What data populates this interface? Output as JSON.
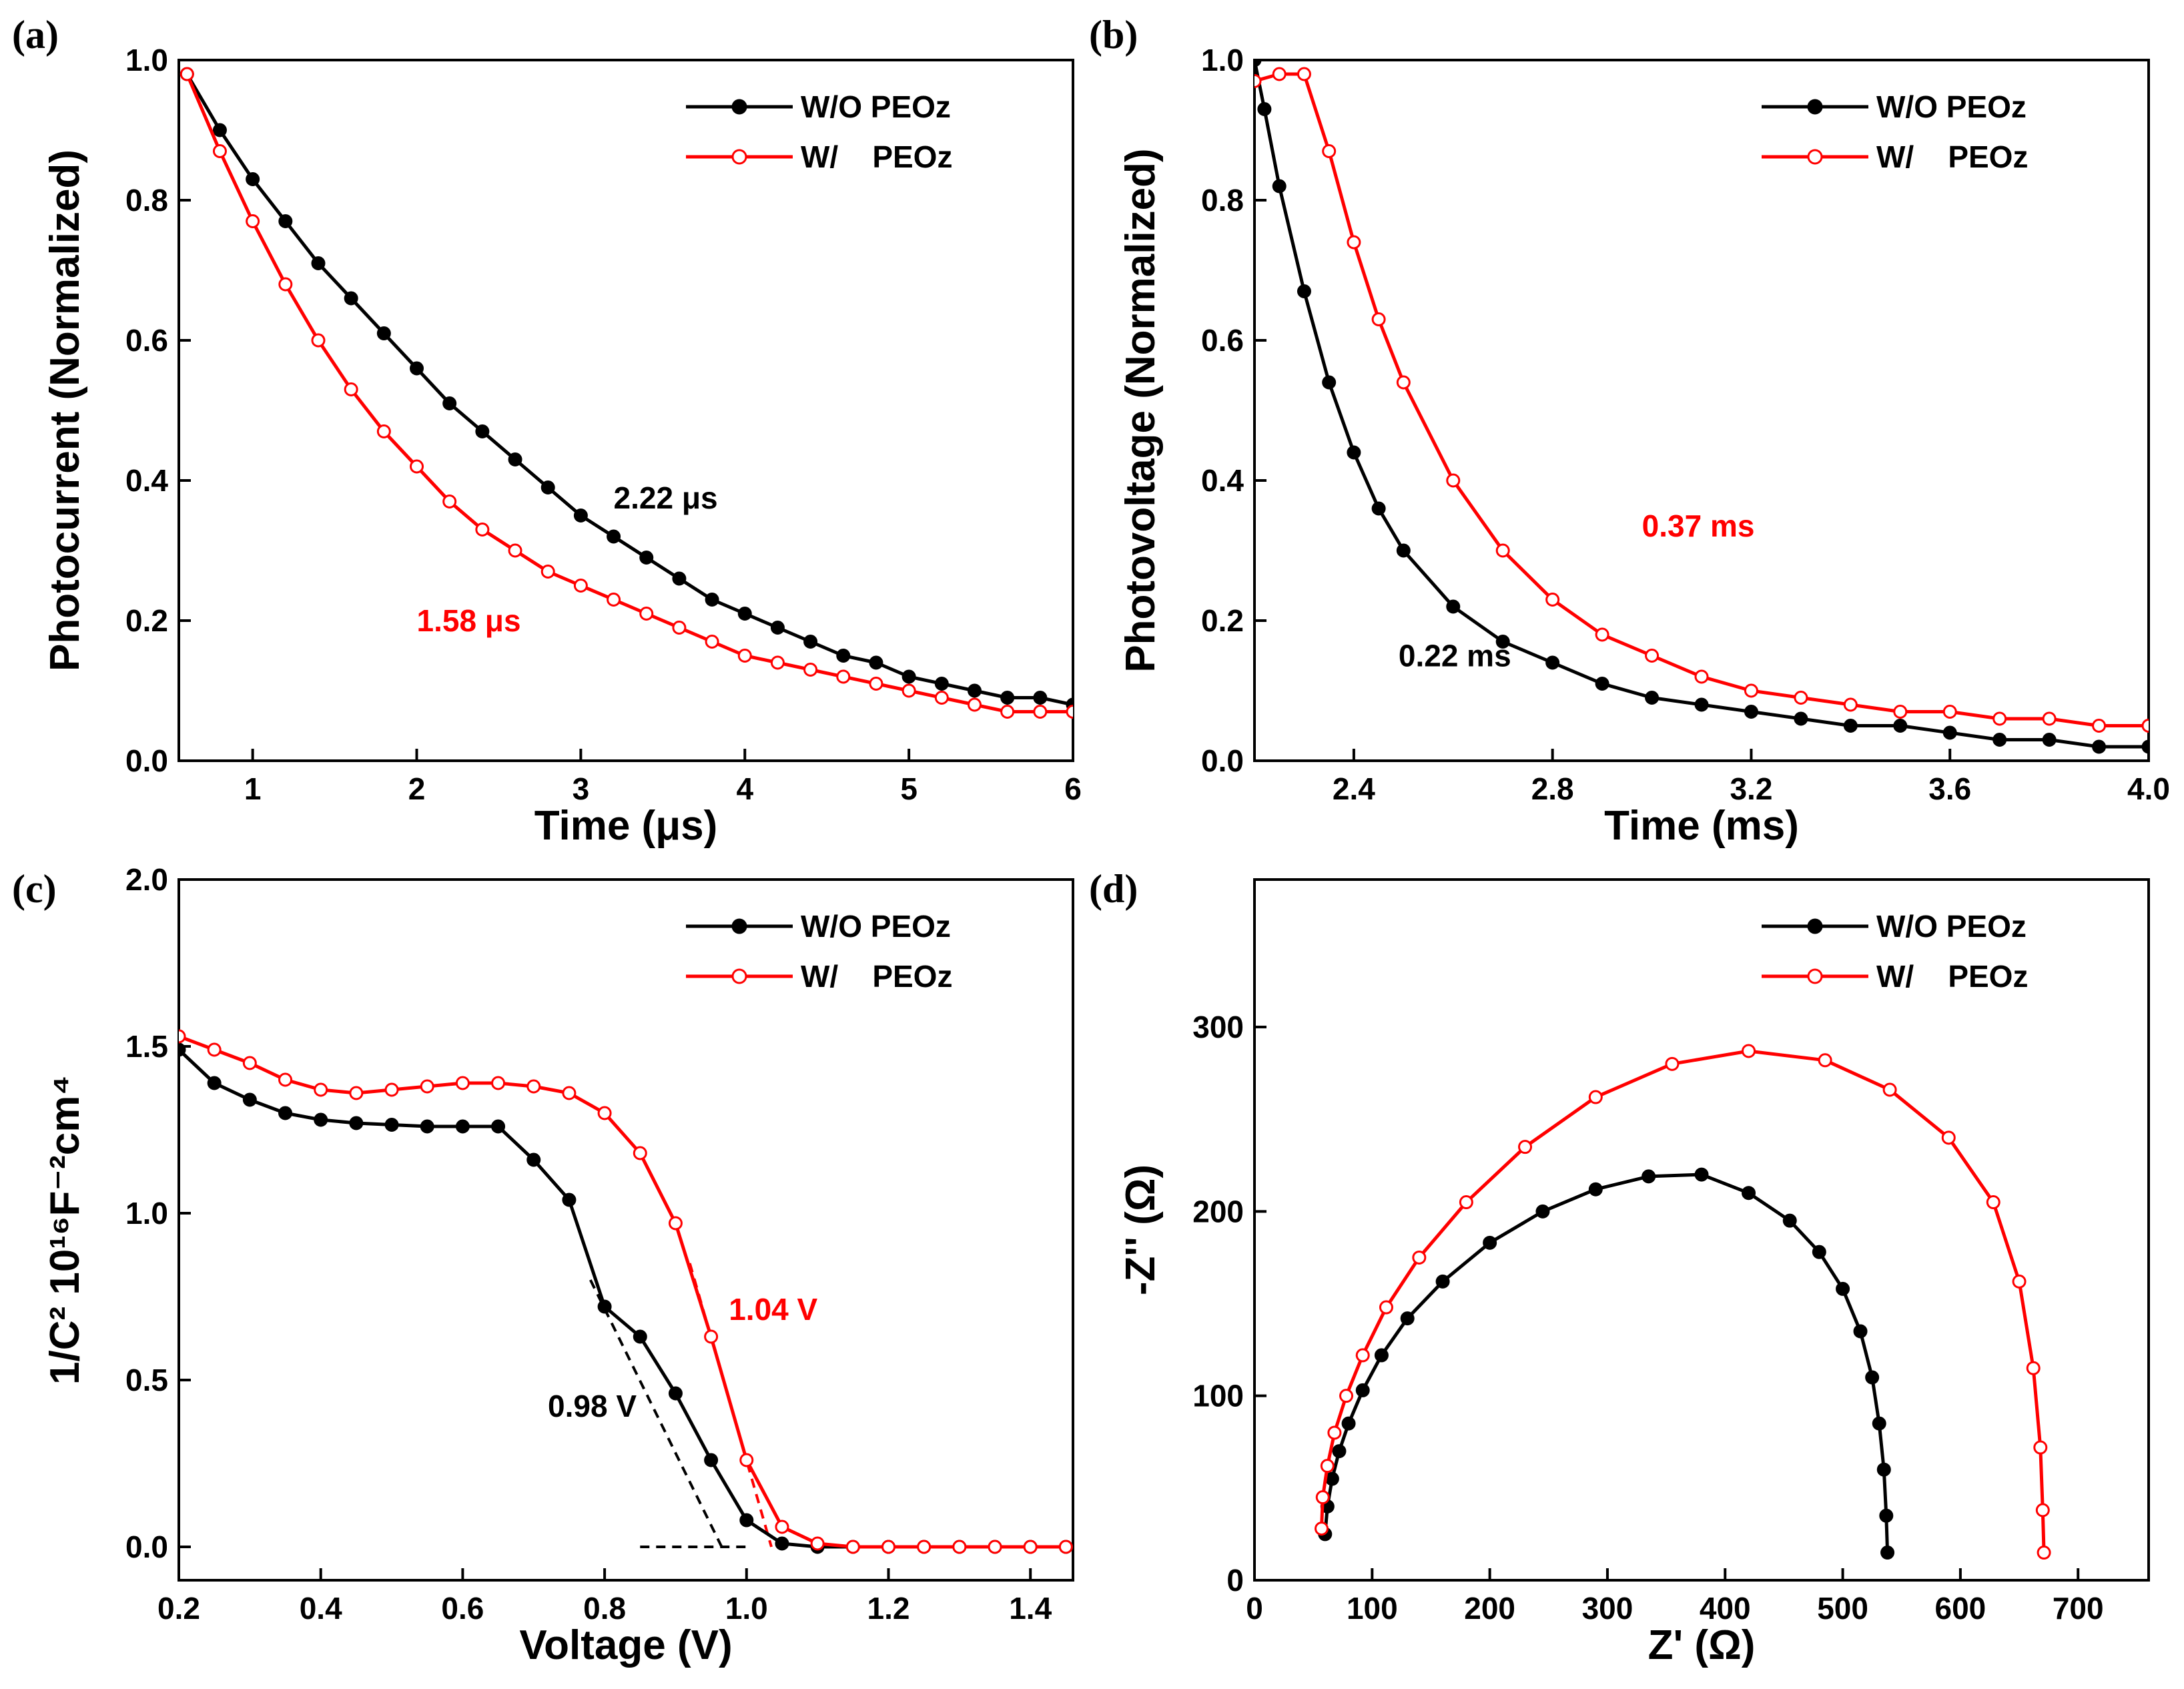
{
  "chart_data": [
    {
      "panel": "(a)",
      "type": "scatter",
      "xlabel": "Time (μs)",
      "ylabel": "Photocurrent (Normalized)",
      "xlim": [
        0.55,
        6.0
      ],
      "ylim": [
        0.0,
        1.0
      ],
      "xticks": [
        1,
        2,
        3,
        4,
        5,
        6
      ],
      "xtick_labels": [
        "1",
        "2",
        "3",
        "4",
        "5",
        "6"
      ],
      "yticks": [
        0.0,
        0.2,
        0.4,
        0.6,
        0.8,
        1.0
      ],
      "ytick_labels": [
        "0.0",
        "0.2",
        "0.4",
        "0.6",
        "0.8",
        "1.0"
      ],
      "legend_position": "top-right",
      "series": [
        {
          "name": "W/O PEOz",
          "color": "#000000",
          "marker": "filled-circle",
          "x": [
            0.6,
            0.8,
            1.0,
            1.2,
            1.4,
            1.6,
            1.8,
            2.0,
            2.2,
            2.4,
            2.6,
            2.8,
            3.0,
            3.2,
            3.4,
            3.6,
            3.8,
            4.0,
            4.2,
            4.4,
            4.6,
            4.8,
            5.0,
            5.2,
            5.4,
            5.6,
            5.8,
            6.0
          ],
          "y": [
            0.98,
            0.9,
            0.83,
            0.77,
            0.71,
            0.66,
            0.61,
            0.56,
            0.51,
            0.47,
            0.43,
            0.39,
            0.35,
            0.32,
            0.29,
            0.26,
            0.23,
            0.21,
            0.19,
            0.17,
            0.15,
            0.14,
            0.12,
            0.11,
            0.1,
            0.09,
            0.09,
            0.08
          ]
        },
        {
          "name": "W/    PEOz",
          "color": "#ff0000",
          "marker": "open-circle",
          "x": [
            0.6,
            0.8,
            1.0,
            1.2,
            1.4,
            1.6,
            1.8,
            2.0,
            2.2,
            2.4,
            2.6,
            2.8,
            3.0,
            3.2,
            3.4,
            3.6,
            3.8,
            4.0,
            4.2,
            4.4,
            4.6,
            4.8,
            5.0,
            5.2,
            5.4,
            5.6,
            5.8,
            6.0
          ],
          "y": [
            0.98,
            0.87,
            0.77,
            0.68,
            0.6,
            0.53,
            0.47,
            0.42,
            0.37,
            0.33,
            0.3,
            0.27,
            0.25,
            0.23,
            0.21,
            0.19,
            0.17,
            0.15,
            0.14,
            0.13,
            0.12,
            0.11,
            0.1,
            0.09,
            0.08,
            0.07,
            0.07,
            0.07
          ]
        }
      ],
      "annotations": [
        {
          "text": "2.22 μs",
          "x": 3.2,
          "y": 0.36,
          "color": "#000000"
        },
        {
          "text": "1.58 μs",
          "x": 2.0,
          "y": 0.185,
          "color": "#ff0000"
        }
      ]
    },
    {
      "panel": "(b)",
      "type": "scatter",
      "xlabel": "Time (ms)",
      "ylabel": "Photovoltage (Normalized)",
      "xlim": [
        2.2,
        4.0
      ],
      "ylim": [
        0.0,
        1.0
      ],
      "xticks": [
        2.4,
        2.8,
        3.2,
        3.6,
        4.0
      ],
      "xtick_labels": [
        "2.4",
        "2.8",
        "3.2",
        "3.6",
        "4.0"
      ],
      "yticks": [
        0.0,
        0.2,
        0.4,
        0.6,
        0.8,
        1.0
      ],
      "ytick_labels": [
        "0.0",
        "0.2",
        "0.4",
        "0.6",
        "0.8",
        "1.0"
      ],
      "legend_position": "top-right",
      "series": [
        {
          "name": "W/O PEOz",
          "color": "#000000",
          "marker": "filled-circle",
          "x": [
            2.2,
            2.22,
            2.25,
            2.3,
            2.35,
            2.4,
            2.45,
            2.5,
            2.6,
            2.7,
            2.8,
            2.9,
            3.0,
            3.1,
            3.2,
            3.3,
            3.4,
            3.5,
            3.6,
            3.7,
            3.8,
            3.9,
            4.0
          ],
          "y": [
            1.0,
            0.93,
            0.82,
            0.67,
            0.54,
            0.44,
            0.36,
            0.3,
            0.22,
            0.17,
            0.14,
            0.11,
            0.09,
            0.08,
            0.07,
            0.06,
            0.05,
            0.05,
            0.04,
            0.03,
            0.03,
            0.02,
            0.02
          ]
        },
        {
          "name": "W/    PEOz",
          "color": "#ff0000",
          "marker": "open-circle",
          "x": [
            2.2,
            2.25,
            2.3,
            2.35,
            2.4,
            2.45,
            2.5,
            2.6,
            2.7,
            2.8,
            2.9,
            3.0,
            3.1,
            3.2,
            3.3,
            3.4,
            3.5,
            3.6,
            3.7,
            3.8,
            3.9,
            4.0
          ],
          "y": [
            0.97,
            0.98,
            0.98,
            0.87,
            0.74,
            0.63,
            0.54,
            0.4,
            0.3,
            0.23,
            0.18,
            0.15,
            0.12,
            0.1,
            0.09,
            0.08,
            0.07,
            0.07,
            0.06,
            0.06,
            0.05,
            0.05
          ]
        }
      ],
      "annotations": [
        {
          "text": "0.37 ms",
          "x": 2.98,
          "y": 0.32,
          "color": "#ff0000"
        },
        {
          "text": "0.22 ms",
          "x": 2.49,
          "y": 0.135,
          "color": "#000000"
        }
      ]
    },
    {
      "panel": "(c)",
      "type": "line",
      "xlabel": "Voltage (V)",
      "ylabel": "1/C² 10¹⁶F⁻²cm⁴",
      "xlim": [
        0.2,
        1.46
      ],
      "ylim": [
        -0.1,
        2.0
      ],
      "xticks": [
        0.2,
        0.4,
        0.6,
        0.8,
        1.0,
        1.2,
        1.4
      ],
      "xtick_labels": [
        "0.2",
        "0.4",
        "0.6",
        "0.8",
        "1.0",
        "1.2",
        "1.4"
      ],
      "yticks": [
        0.0,
        0.5,
        1.0,
        1.5,
        2.0
      ],
      "ytick_labels": [
        "0.0",
        "0.5",
        "1.0",
        "1.5",
        "2.0"
      ],
      "legend_position": "top-right",
      "series": [
        {
          "name": "W/O PEOz",
          "color": "#000000",
          "marker": "filled-circle",
          "x": [
            0.2,
            0.25,
            0.3,
            0.35,
            0.4,
            0.45,
            0.5,
            0.55,
            0.6,
            0.65,
            0.7,
            0.75,
            0.8,
            0.85,
            0.9,
            0.95,
            1.0,
            1.05,
            1.1,
            1.15,
            1.2,
            1.25,
            1.3,
            1.35,
            1.4,
            1.45
          ],
          "y": [
            1.49,
            1.39,
            1.34,
            1.3,
            1.28,
            1.27,
            1.265,
            1.26,
            1.26,
            1.26,
            1.16,
            1.04,
            0.72,
            0.63,
            0.46,
            0.26,
            0.08,
            0.01,
            0.0,
            0.0,
            0.0,
            0.0,
            0.0,
            0.0,
            0.0,
            0.0
          ]
        },
        {
          "name": "W/    PEOz",
          "color": "#ff0000",
          "marker": "open-circle",
          "x": [
            0.2,
            0.25,
            0.3,
            0.35,
            0.4,
            0.45,
            0.5,
            0.55,
            0.6,
            0.65,
            0.7,
            0.75,
            0.8,
            0.85,
            0.9,
            0.95,
            1.0,
            1.05,
            1.1,
            1.15,
            1.2,
            1.25,
            1.3,
            1.35,
            1.4,
            1.45
          ],
          "y": [
            1.53,
            1.49,
            1.45,
            1.4,
            1.37,
            1.36,
            1.37,
            1.38,
            1.39,
            1.39,
            1.38,
            1.36,
            1.3,
            1.18,
            0.97,
            0.63,
            0.26,
            0.06,
            0.01,
            0.0,
            0.0,
            0.0,
            0.0,
            0.0,
            0.0,
            0.0
          ]
        }
      ],
      "annotations": [
        {
          "text": "1.04 V",
          "x": 0.975,
          "y": 0.68,
          "color": "#ff0000"
        },
        {
          "text": "0.98 V",
          "x": 0.72,
          "y": 0.39,
          "color": "#000000"
        }
      ]
    },
    {
      "panel": "(d)",
      "type": "line",
      "xlabel": "Z' (Ω)",
      "ylabel": "-Z'' (Ω)",
      "xlim": [
        0,
        760
      ],
      "ylim": [
        0,
        380
      ],
      "xticks": [
        0,
        100,
        200,
        300,
        400,
        500,
        600,
        700
      ],
      "xtick_labels": [
        "0",
        "100",
        "200",
        "300",
        "400",
        "500",
        "600",
        "700"
      ],
      "yticks": [
        0,
        100,
        200,
        300
      ],
      "ytick_labels": [
        "0",
        "100",
        "200",
        "300"
      ],
      "legend_position": "top-right",
      "series": [
        {
          "name": "W/O PEOz",
          "color": "#000000",
          "marker": "filled-circle",
          "x": [
            60,
            62,
            66,
            72,
            80,
            92,
            108,
            130,
            160,
            200,
            245,
            290,
            335,
            380,
            420,
            455,
            480,
            500,
            515,
            525,
            531,
            535,
            537,
            538
          ],
          "y": [
            25,
            40,
            55,
            70,
            85,
            103,
            122,
            142,
            162,
            183,
            200,
            212,
            219,
            220,
            210,
            195,
            178,
            158,
            135,
            110,
            85,
            60,
            35,
            15
          ]
        },
        {
          "name": "W/    PEOz",
          "color": "#ff0000",
          "marker": "open-circle",
          "x": [
            57,
            58,
            62,
            68,
            78,
            92,
            112,
            140,
            180,
            230,
            290,
            355,
            420,
            485,
            540,
            590,
            628,
            650,
            662,
            668,
            670,
            671
          ],
          "y": [
            28,
            45,
            62,
            80,
            100,
            122,
            148,
            175,
            205,
            235,
            262,
            280,
            287,
            282,
            266,
            240,
            205,
            162,
            115,
            72,
            38,
            15
          ]
        }
      ]
    }
  ]
}
